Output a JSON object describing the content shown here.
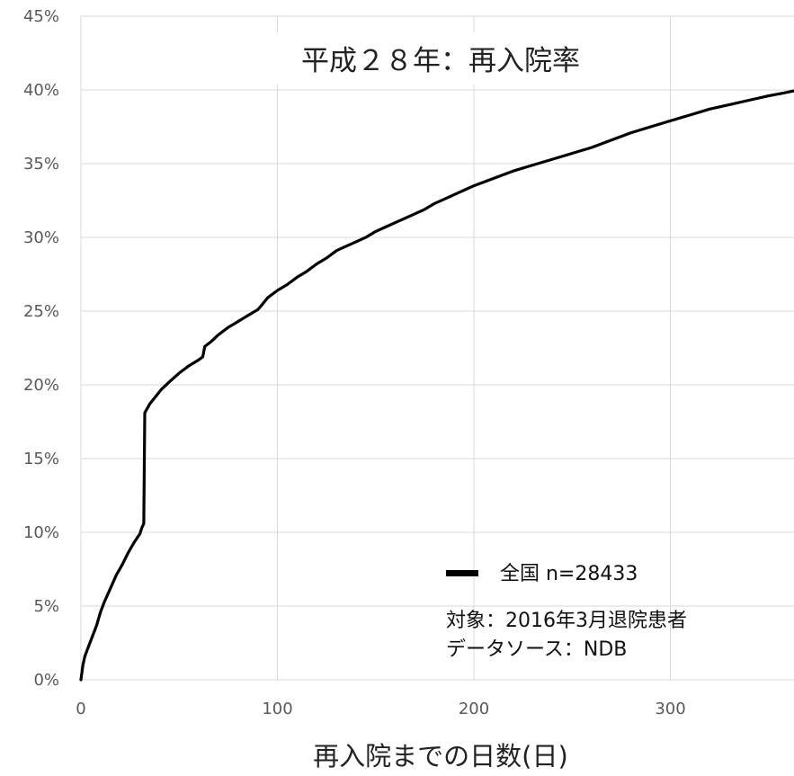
{
  "chart_data": {
    "type": "line",
    "title": "平成２８年：再入院率",
    "xlabel": "再入院までの日数(日)",
    "ylabel": "",
    "xlim": [
      0,
      365
    ],
    "ylim": [
      0,
      45
    ],
    "x_ticks": [
      "0",
      "100",
      "200",
      "300"
    ],
    "y_ticks": [
      "0%",
      "5%",
      "10%",
      "15%",
      "20%",
      "25%",
      "30%",
      "35%",
      "40%",
      "45%"
    ],
    "grid": true,
    "legend": {
      "label": "全国  n=28433",
      "position": "bottom-right"
    },
    "annotations": [
      "対象：2016年3月退院患者",
      "データソース：NDB"
    ],
    "series": [
      {
        "name": "全国  n=28433",
        "color": "#000000",
        "points": [
          [
            0,
            0
          ],
          [
            1,
            1.0
          ],
          [
            2,
            1.6
          ],
          [
            4,
            2.3
          ],
          [
            6,
            3.0
          ],
          [
            8,
            3.7
          ],
          [
            10,
            4.6
          ],
          [
            12,
            5.3
          ],
          [
            15,
            6.2
          ],
          [
            18,
            7.1
          ],
          [
            21,
            7.8
          ],
          [
            24,
            8.6
          ],
          [
            27,
            9.3
          ],
          [
            30,
            9.9
          ],
          [
            31,
            10.3
          ],
          [
            32,
            10.6
          ],
          [
            32.5,
            18.1
          ],
          [
            35,
            18.7
          ],
          [
            38,
            19.2
          ],
          [
            41,
            19.7
          ],
          [
            45,
            20.2
          ],
          [
            50,
            20.8
          ],
          [
            55,
            21.3
          ],
          [
            60,
            21.7
          ],
          [
            62,
            21.9
          ],
          [
            63,
            22.6
          ],
          [
            66,
            22.9
          ],
          [
            70,
            23.4
          ],
          [
            75,
            23.9
          ],
          [
            80,
            24.3
          ],
          [
            85,
            24.7
          ],
          [
            90,
            25.1
          ],
          [
            92,
            25.4
          ],
          [
            95,
            25.9
          ],
          [
            100,
            26.4
          ],
          [
            105,
            26.8
          ],
          [
            110,
            27.3
          ],
          [
            115,
            27.7
          ],
          [
            120,
            28.2
          ],
          [
            125,
            28.6
          ],
          [
            130,
            29.1
          ],
          [
            135,
            29.4
          ],
          [
            140,
            29.7
          ],
          [
            145,
            30.0
          ],
          [
            150,
            30.4
          ],
          [
            155,
            30.7
          ],
          [
            160,
            31.0
          ],
          [
            165,
            31.3
          ],
          [
            170,
            31.6
          ],
          [
            175,
            31.9
          ],
          [
            180,
            32.3
          ],
          [
            185,
            32.6
          ],
          [
            190,
            32.9
          ],
          [
            195,
            33.2
          ],
          [
            200,
            33.5
          ],
          [
            210,
            34.0
          ],
          [
            220,
            34.5
          ],
          [
            230,
            34.9
          ],
          [
            240,
            35.3
          ],
          [
            250,
            35.7
          ],
          [
            260,
            36.1
          ],
          [
            270,
            36.6
          ],
          [
            280,
            37.1
          ],
          [
            290,
            37.5
          ],
          [
            300,
            37.9
          ],
          [
            310,
            38.3
          ],
          [
            320,
            38.7
          ],
          [
            330,
            39.0
          ],
          [
            340,
            39.3
          ],
          [
            350,
            39.6
          ],
          [
            358,
            39.8
          ],
          [
            365,
            40.0
          ]
        ]
      }
    ]
  }
}
